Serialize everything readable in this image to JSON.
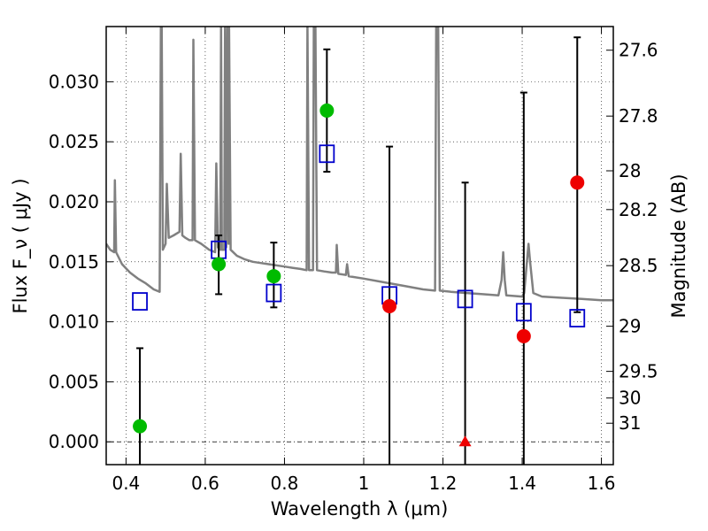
{
  "chart_data": {
    "type": "scatter",
    "xlabel": "Wavelength  λ (μm)",
    "ylabel": "Flux  F_ν  ( μJy )",
    "ylabel_right": "Magnitude (AB)",
    "xlim": [
      0.35,
      1.63
    ],
    "ylim": [
      -0.0019,
      0.0346
    ],
    "grid": true,
    "x_ticks": [
      {
        "value": 0.4,
        "label": "0.4"
      },
      {
        "value": 0.6,
        "label": "0.6"
      },
      {
        "value": 0.8,
        "label": "0.8"
      },
      {
        "value": 1.0,
        "label": "1"
      },
      {
        "value": 1.2,
        "label": "1.2"
      },
      {
        "value": 1.4,
        "label": "1.4"
      },
      {
        "value": 1.6,
        "label": "1.6"
      }
    ],
    "y_ticks": [
      {
        "value": 0.0,
        "label": "0.000"
      },
      {
        "value": 0.005,
        "label": "0.005"
      },
      {
        "value": 0.01,
        "label": "0.010"
      },
      {
        "value": 0.015,
        "label": "0.015"
      },
      {
        "value": 0.02,
        "label": "0.020"
      },
      {
        "value": 0.025,
        "label": "0.025"
      },
      {
        "value": 0.03,
        "label": "0.030"
      }
    ],
    "right_ticks": [
      {
        "flux": 0.03263,
        "label": "27.6"
      },
      {
        "flux": 0.02714,
        "label": "27.8"
      },
      {
        "flux": 0.02258,
        "label": "28"
      },
      {
        "flux": 0.01935,
        "label": "28.2"
      },
      {
        "flux": 0.01468,
        "label": "28.5"
      },
      {
        "flux": 0.00963,
        "label": "29"
      },
      {
        "flux": 0.00587,
        "label": "29.5"
      },
      {
        "flux": 0.00365,
        "label": "30"
      },
      {
        "flux": 0.00155,
        "label": "31"
      }
    ],
    "model_spectrum": {
      "color": "#808080",
      "points": [
        [
          0.35,
          0.0165
        ],
        [
          0.36,
          0.016
        ],
        [
          0.37,
          0.0158
        ],
        [
          0.372,
          0.0218
        ],
        [
          0.375,
          0.0158
        ],
        [
          0.39,
          0.0148
        ],
        [
          0.41,
          0.0141
        ],
        [
          0.43,
          0.0136
        ],
        [
          0.45,
          0.0132
        ],
        [
          0.47,
          0.0127
        ],
        [
          0.485,
          0.0125
        ],
        [
          0.488,
          0.035
        ],
        [
          0.49,
          0.035
        ],
        [
          0.493,
          0.016
        ],
        [
          0.5,
          0.0165
        ],
        [
          0.503,
          0.0215
        ],
        [
          0.508,
          0.017
        ],
        [
          0.52,
          0.0172
        ],
        [
          0.535,
          0.0175
        ],
        [
          0.538,
          0.024
        ],
        [
          0.542,
          0.0172
        ],
        [
          0.55,
          0.017
        ],
        [
          0.56,
          0.0168
        ],
        [
          0.568,
          0.0168
        ],
        [
          0.57,
          0.0335
        ],
        [
          0.574,
          0.0168
        ],
        [
          0.59,
          0.0165
        ],
        [
          0.61,
          0.016
        ],
        [
          0.625,
          0.0158
        ],
        [
          0.628,
          0.0232
        ],
        [
          0.632,
          0.0162
        ],
        [
          0.638,
          0.016
        ],
        [
          0.64,
          0.035
        ],
        [
          0.642,
          0.016
        ],
        [
          0.648,
          0.016
        ],
        [
          0.65,
          0.035
        ],
        [
          0.653,
          0.0162
        ],
        [
          0.656,
          0.035
        ],
        [
          0.659,
          0.0165
        ],
        [
          0.66,
          0.035
        ],
        [
          0.664,
          0.016
        ],
        [
          0.68,
          0.0155
        ],
        [
          0.7,
          0.0152
        ],
        [
          0.72,
          0.015
        ],
        [
          0.74,
          0.0149
        ],
        [
          0.76,
          0.0148
        ],
        [
          0.78,
          0.0147
        ],
        [
          0.8,
          0.0146
        ],
        [
          0.82,
          0.0145
        ],
        [
          0.84,
          0.0144
        ],
        [
          0.856,
          0.0143
        ],
        [
          0.858,
          0.035
        ],
        [
          0.862,
          0.0143
        ],
        [
          0.872,
          0.0143
        ],
        [
          0.874,
          0.035
        ],
        [
          0.878,
          0.035
        ],
        [
          0.882,
          0.0143
        ],
        [
          0.9,
          0.0142
        ],
        [
          0.92,
          0.0141
        ],
        [
          0.93,
          0.0141
        ],
        [
          0.932,
          0.0164
        ],
        [
          0.936,
          0.014
        ],
        [
          0.955,
          0.0139
        ],
        [
          0.958,
          0.0148
        ],
        [
          0.962,
          0.0138
        ],
        [
          1.0,
          0.0136
        ],
        [
          1.05,
          0.0133
        ],
        [
          1.1,
          0.013
        ],
        [
          1.15,
          0.0127
        ],
        [
          1.18,
          0.0126
        ],
        [
          1.183,
          0.035
        ],
        [
          1.188,
          0.035
        ],
        [
          1.192,
          0.0126
        ],
        [
          1.22,
          0.0125
        ],
        [
          1.26,
          0.0124
        ],
        [
          1.3,
          0.0123
        ],
        [
          1.34,
          0.0122
        ],
        [
          1.348,
          0.0135
        ],
        [
          1.352,
          0.0158
        ],
        [
          1.356,
          0.0135
        ],
        [
          1.36,
          0.0122
        ],
        [
          1.4,
          0.0121
        ],
        [
          1.405,
          0.0124
        ],
        [
          1.412,
          0.015
        ],
        [
          1.416,
          0.0165
        ],
        [
          1.42,
          0.015
        ],
        [
          1.428,
          0.0124
        ],
        [
          1.45,
          0.0121
        ],
        [
          1.5,
          0.012
        ],
        [
          1.55,
          0.0119
        ],
        [
          1.6,
          0.0118
        ],
        [
          1.63,
          0.0118
        ]
      ]
    },
    "model_photometry": {
      "color": "#0000cc",
      "points": [
        {
          "x": 0.435,
          "y": 0.0117
        },
        {
          "x": 0.634,
          "y": 0.016
        },
        {
          "x": 0.773,
          "y": 0.0124
        },
        {
          "x": 0.907,
          "y": 0.024
        },
        {
          "x": 1.065,
          "y": 0.0122
        },
        {
          "x": 1.256,
          "y": 0.0119
        },
        {
          "x": 1.404,
          "y": 0.0108
        },
        {
          "x": 1.539,
          "y": 0.0103
        }
      ]
    },
    "observations": [
      {
        "x": 0.435,
        "y": 0.0013,
        "lo": -0.0019,
        "hi": 0.0078,
        "color": "#00bb00",
        "marker": "circle"
      },
      {
        "x": 0.634,
        "y": 0.0148,
        "lo": 0.0123,
        "hi": 0.0172,
        "color": "#00bb00",
        "marker": "circle"
      },
      {
        "x": 0.773,
        "y": 0.0138,
        "lo": 0.0112,
        "hi": 0.0166,
        "color": "#00bb00",
        "marker": "circle"
      },
      {
        "x": 0.907,
        "y": 0.0276,
        "lo": 0.0225,
        "hi": 0.0327,
        "color": "#00bb00",
        "marker": "circle"
      },
      {
        "x": 1.065,
        "y": 0.0113,
        "lo": -0.0019,
        "hi": 0.0246,
        "color": "#ee0000",
        "marker": "circle"
      },
      {
        "x": 1.256,
        "y": 0.0,
        "lo": -0.0019,
        "hi": 0.0216,
        "color": "#ee0000",
        "marker": "triangle"
      },
      {
        "x": 1.404,
        "y": 0.0088,
        "lo": -0.0019,
        "hi": 0.0291,
        "color": "#ee0000",
        "marker": "circle"
      },
      {
        "x": 1.539,
        "y": 0.0216,
        "lo": 0.0108,
        "hi": 0.0337,
        "color": "#ee0000",
        "marker": "circle"
      }
    ],
    "zero_line": {
      "y": 0.0,
      "color": "#000000"
    }
  }
}
